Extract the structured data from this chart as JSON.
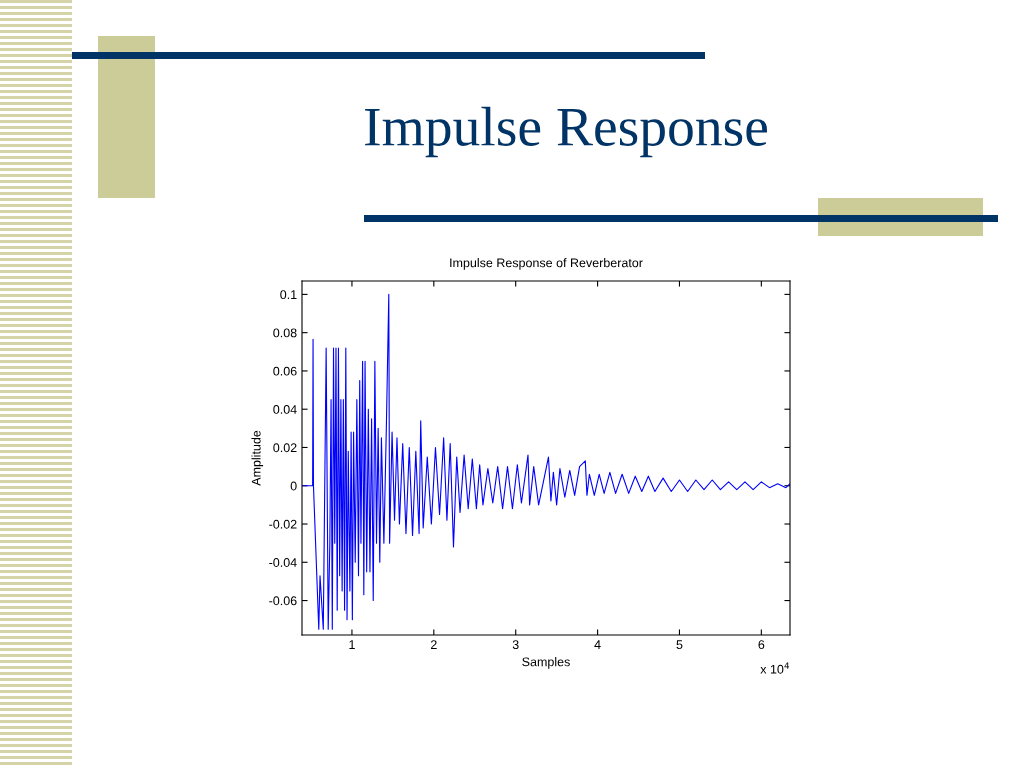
{
  "chart_data": {
    "type": "line",
    "title": "Impulse Response",
    "subtitle": "Impulse Response of Reverberator",
    "xlabel": "Samples",
    "ylabel": "Amplitude",
    "annotations": [
      "x 10$^{4}$"
    ],
    "xlim": [
      0.39,
      6.35
    ],
    "ylim": [
      -0.078,
      0.107
    ],
    "xticks": [
      1,
      2,
      3,
      4,
      5,
      6
    ],
    "yticks": [
      -0.06,
      -0.04,
      -0.02,
      0,
      0.02,
      0.04,
      0.06,
      0.08,
      0.1
    ],
    "grid": false,
    "marker": "none",
    "line_style": "solid",
    "series": [
      {
        "color": "#0000ff",
        "x": [
          0.39,
          0.52,
          0.525,
          0.53,
          0.595,
          0.61,
          0.65,
          0.685,
          0.71,
          0.73,
          0.745,
          0.76,
          0.775,
          0.79,
          0.805,
          0.82,
          0.835,
          0.85,
          0.865,
          0.88,
          0.895,
          0.91,
          0.925,
          0.94,
          0.955,
          0.975,
          0.99,
          1.005,
          1.02,
          1.04,
          1.06,
          1.08,
          1.095,
          1.11,
          1.13,
          1.145,
          1.16,
          1.18,
          1.2,
          1.22,
          1.24,
          1.26,
          1.28,
          1.3,
          1.32,
          1.34,
          1.36,
          1.39,
          1.42,
          1.45,
          1.46,
          1.49,
          1.52,
          1.55,
          1.58,
          1.62,
          1.66,
          1.7,
          1.74,
          1.78,
          1.82,
          1.84,
          1.87,
          1.92,
          1.97,
          2.02,
          2.07,
          2.12,
          2.16,
          2.2,
          2.24,
          2.28,
          2.32,
          2.37,
          2.42,
          2.47,
          2.52,
          2.56,
          2.6,
          2.66,
          2.72,
          2.78,
          2.84,
          2.9,
          2.96,
          3.02,
          3.07,
          3.15,
          3.17,
          3.22,
          3.28,
          3.4,
          3.43,
          3.46,
          3.5,
          3.54,
          3.6,
          3.66,
          3.72,
          3.78,
          3.85,
          3.87,
          3.9,
          3.96,
          4.02,
          4.08,
          4.15,
          4.22,
          4.3,
          4.38,
          4.46,
          4.54,
          4.62,
          4.7,
          4.8,
          4.9,
          5.0,
          5.1,
          5.2,
          5.3,
          5.4,
          5.5,
          5.6,
          5.7,
          5.8,
          5.9,
          6.0,
          6.1,
          6.2,
          6.3,
          6.35
        ],
        "values": [
          0,
          0,
          0.0765,
          0,
          -0.075,
          -0.047,
          -0.075,
          0.072,
          -0.075,
          -0.03,
          0.045,
          -0.075,
          0.072,
          -0.03,
          0.072,
          -0.065,
          0.072,
          -0.047,
          0.045,
          -0.055,
          0.045,
          -0.065,
          0.072,
          -0.07,
          0.018,
          -0.055,
          0.028,
          -0.07,
          0.028,
          -0.04,
          0.045,
          -0.047,
          0.055,
          -0.03,
          0.065,
          -0.057,
          0.065,
          -0.045,
          0.04,
          -0.045,
          0.035,
          -0.06,
          0.065,
          -0.03,
          0.03,
          -0.04,
          0.025,
          -0.03,
          0.03,
          0.1,
          -0.03,
          0.028,
          -0.018,
          0.025,
          -0.02,
          0.022,
          -0.025,
          0.02,
          -0.026,
          0.018,
          -0.025,
          0.034,
          -0.022,
          0.015,
          -0.02,
          0.02,
          -0.015,
          0.025,
          -0.018,
          0.022,
          -0.032,
          0.015,
          -0.014,
          0.016,
          -0.012,
          0.014,
          -0.012,
          0.011,
          -0.01,
          0.009,
          -0.009,
          0.01,
          -0.012,
          0.01,
          -0.012,
          0.011,
          -0.009,
          0.016,
          -0.01,
          0.01,
          -0.01,
          0.015,
          -0.008,
          0.007,
          -0.01,
          0.009,
          -0.006,
          0.008,
          -0.005,
          0.01,
          0.013,
          -0.005,
          0.006,
          -0.005,
          0.006,
          -0.004,
          0.007,
          -0.004,
          0.006,
          -0.004,
          0.005,
          -0.003,
          0.005,
          -0.003,
          0.004,
          -0.003,
          0.003,
          -0.003,
          0.003,
          -0.002,
          0.003,
          -0.002,
          0.002,
          -0.002,
          0.002,
          -0.002,
          0.002,
          -0.001,
          0.001,
          -0.001,
          0.001
        ]
      }
    ]
  }
}
